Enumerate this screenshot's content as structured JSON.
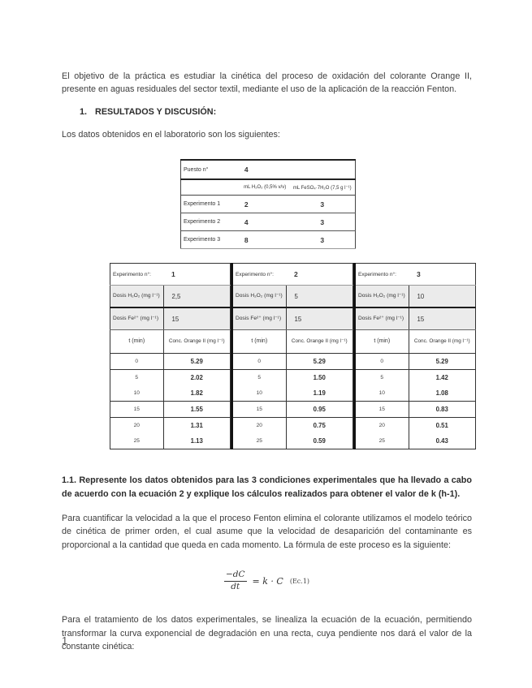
{
  "intro": "El objetivo de la práctica es estudiar la cinética del proceso de oxidación del colorante Orange II, presente en aguas residuales del sector textil, mediante el uso de la aplicación de la reacción Fenton.",
  "heading": {
    "num": "1.",
    "text": "RESULTADOS Y DISCUSIÓN:"
  },
  "para_datos": "Los datos obtenidos en el laboratorio son los siguientes:",
  "setup_table": {
    "puesto_label": "Puesto n°",
    "puesto_value": "4",
    "col_h2o2": "mL H₂O₂ (0,5% v/v)",
    "col_feso4": "mL FeSO₄·7H₂O (7,5 g l⁻¹)",
    "rows": [
      {
        "label": "Experimento 1",
        "h2o2": "2",
        "feso4": "3"
      },
      {
        "label": "Experimento 2",
        "h2o2": "4",
        "feso4": "3"
      },
      {
        "label": "Experimento 3",
        "h2o2": "8",
        "feso4": "3"
      }
    ]
  },
  "results_table": {
    "exp_label": "Experimento n°:",
    "dose_h2o2_label": "Dosis H₂O₂ (mg l⁻¹)",
    "dose_fe_label": "Dosis Fe²⁺ (mg l⁻¹)",
    "t_label": "t (min)",
    "conc_label": "Conc. Orange II (mg l⁻¹)"
  },
  "experiments": [
    {
      "num": "1",
      "dose_h2o2": "2,5",
      "dose_fe": "15",
      "rows": [
        [
          "0",
          "5.29"
        ],
        [
          "5",
          "2.02"
        ],
        [
          "10",
          "1.82"
        ],
        [
          "15",
          "1.55"
        ],
        [
          "20",
          "1.31"
        ],
        [
          "25",
          "1.13"
        ]
      ]
    },
    {
      "num": "2",
      "dose_h2o2": "5",
      "dose_fe": "15",
      "rows": [
        [
          "0",
          "5.29"
        ],
        [
          "5",
          "1.50"
        ],
        [
          "10",
          "1.19"
        ],
        [
          "15",
          "0.95"
        ],
        [
          "20",
          "0.75"
        ],
        [
          "25",
          "0.59"
        ]
      ]
    },
    {
      "num": "3",
      "dose_h2o2": "10",
      "dose_fe": "15",
      "rows": [
        [
          "0",
          "5.29"
        ],
        [
          "5",
          "1.42"
        ],
        [
          "10",
          "1.08"
        ],
        [
          "15",
          "0.83"
        ],
        [
          "20",
          "0.51"
        ],
        [
          "25",
          "0.43"
        ]
      ]
    }
  ],
  "question11": "1.1. Represente los datos obtenidos para las 3 condiciones experimentales que ha llevado a cabo de acuerdo con la ecuación 2 y explique los cálculos realizados para obtener el valor de k (h-1).",
  "para2": "Para cuantificar la velocidad a la que el proceso Fenton elimina el colorante utilizamos el modelo teórico de cinética de primer orden, el cual asume que la velocidad de desaparición del contaminante es proporcional a la cantidad que queda en cada momento. La fórmula de este proceso es la siguiente:",
  "formula": {
    "num": "−dC",
    "den": "dt",
    "rhs": "= k · C",
    "tag": "(Ec.1)"
  },
  "para3": "Para el tratamiento de los datos experimentales, se linealiza la ecuación de la ecuación, permitiendo transformar la curva exponencial de degradación en una recta, cuya pendiente nos dará el valor de la constante cinética:",
  "page_number": "1"
}
